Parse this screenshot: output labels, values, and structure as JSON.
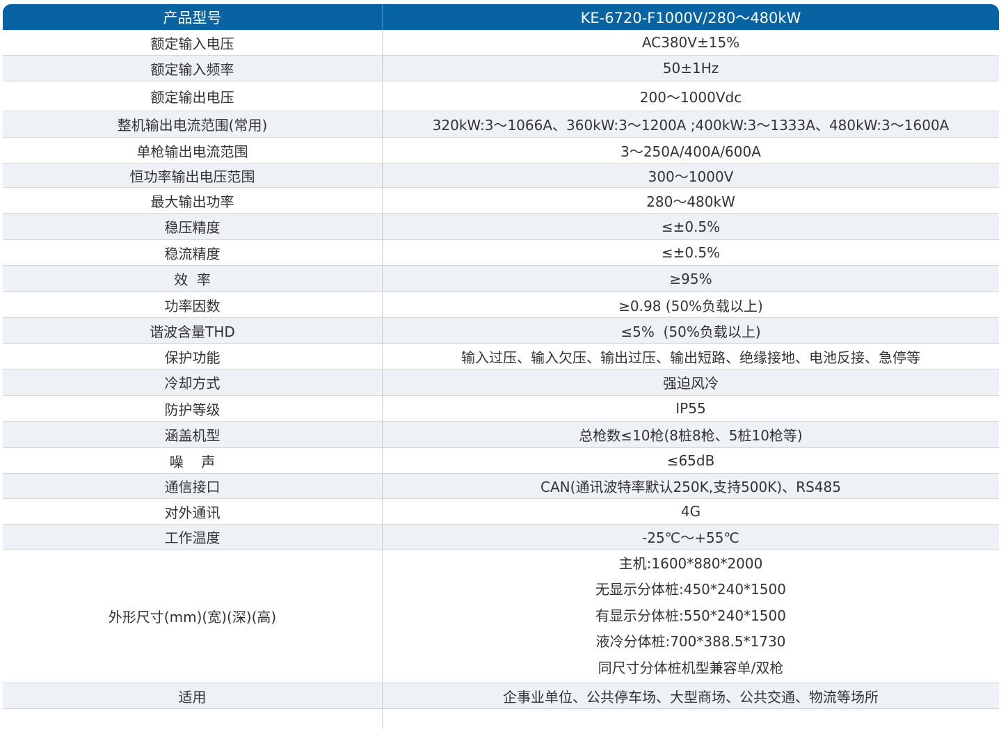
{
  "header": {
    "label": "产品型号",
    "value": "KE-6720-F1000V/280～480kW"
  },
  "colors": {
    "header_bg": "#0863a3",
    "alt_row": "#eef1f5"
  },
  "rows": [
    {
      "label": "额定输入电压",
      "value": "AC380V±15%"
    },
    {
      "label": "额定输入频率",
      "value": "50±1Hz"
    },
    {
      "label": "额定输出电压",
      "value": "200～1000Vdc"
    },
    {
      "label": "整机输出电流范围(常用)",
      "value": "320kW:3～1066A、360kW:3～1200A ;400kW:3～1333A、480kW:3～1600A"
    },
    {
      "label": "单枪输出电流范围",
      "value": "3～250A/400A/600A"
    },
    {
      "label": "恒功率输出电压范围",
      "value": "300～1000V"
    },
    {
      "label": "最大输出功率",
      "value": "280～480kW"
    },
    {
      "label": "稳压精度",
      "value": "≤±0.5%"
    },
    {
      "label": "稳流精度",
      "value": "≤±0.5%"
    },
    {
      "label": "效  率",
      "value": "≥95%"
    },
    {
      "label": "功率因数",
      "value": "≥0.98 (50%负载以上)"
    },
    {
      "label": "谐波含量THD",
      "value": "≤5%  (50%负载以上)"
    },
    {
      "label": "保护功能",
      "value": "输入过压、输入欠压、输出过压、输出短路、绝缘接地、电池反接、急停等"
    },
    {
      "label": "冷却方式",
      "value": "强迫风冷"
    },
    {
      "label": "防护等级",
      "value": "IP55"
    },
    {
      "label": "涵盖机型",
      "value": "总枪数≤10枪(8桩8枪、5桩10枪等)"
    },
    {
      "label": "噪    声",
      "value": "≤65dB"
    },
    {
      "label": "通信接口",
      "value": "CAN(通讯波特率默认250K,支持500K)、RS485"
    },
    {
      "label": "对外通讯",
      "value": "4G"
    },
    {
      "label": "工作温度",
      "value": "-25℃～+55℃"
    }
  ],
  "dimensions": {
    "label": "外形尺寸(mm)(宽)(深)(高)",
    "values": [
      "主机:1600*880*2000",
      "无显示分体桩:450*240*1500",
      "有显示分体桩:550*240*1500",
      "液冷分体桩:700*388.5*1730",
      "同尺寸分体桩机型兼容单/双枪"
    ]
  },
  "application": {
    "label": "适用",
    "value": "企事业单位、公共停车场、大型商场、公共交通、物流等场所"
  }
}
